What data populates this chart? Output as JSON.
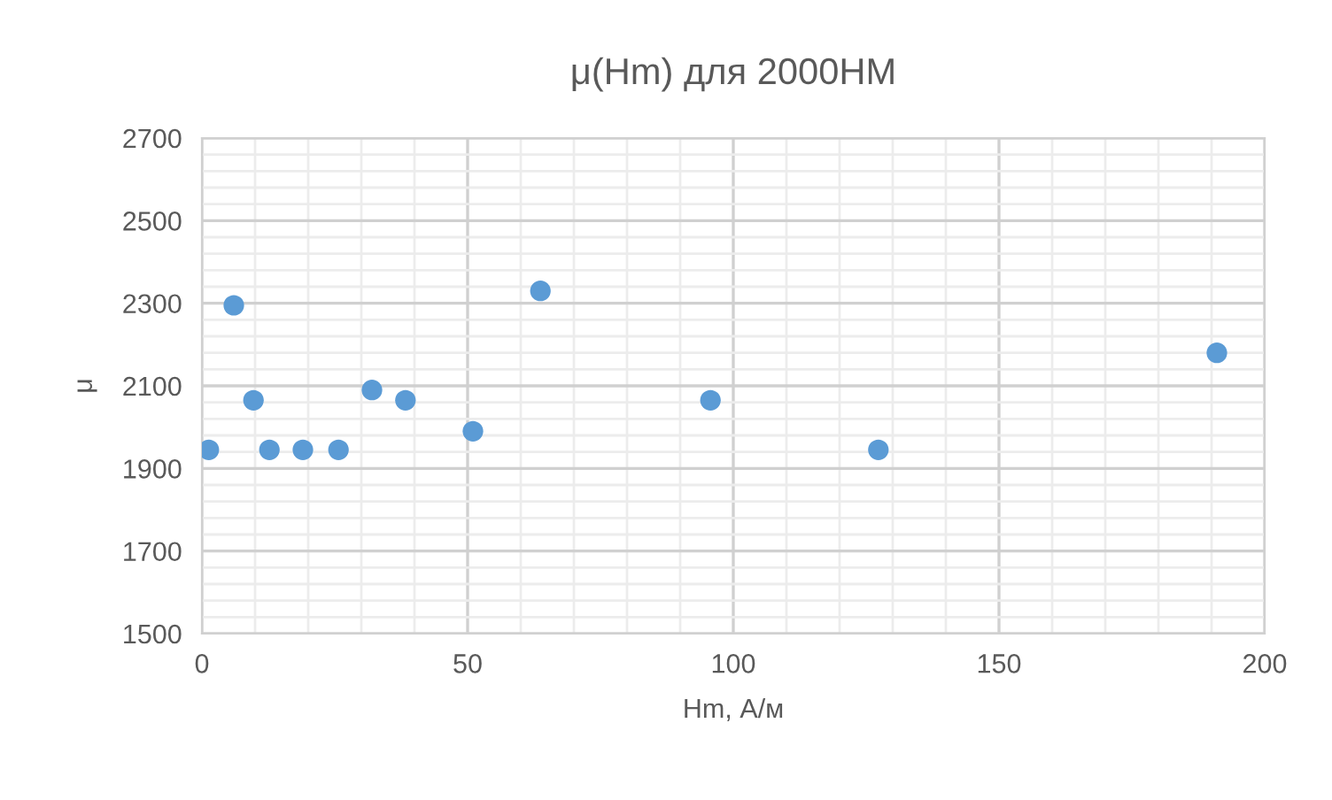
{
  "chart_data": {
    "type": "scatter",
    "title": "μ(Hm) для 2000НМ",
    "xlabel": "Hm, А/м",
    "ylabel": "μ",
    "x": [
      1.3,
      6,
      9.7,
      12.7,
      19,
      25.7,
      32,
      38.3,
      51,
      63.7,
      95.7,
      127.3,
      191
    ],
    "series": [
      {
        "color": "#5b9bd5",
        "values": [
          1945,
          2295,
          2065,
          1945,
          1945,
          1945,
          2090,
          2065,
          1990,
          2330,
          2065,
          1945,
          2180
        ]
      }
    ],
    "xlim": [
      0,
      200
    ],
    "xticks": [
      0,
      50,
      100,
      150,
      200
    ],
    "ylim": [
      1500,
      2700
    ],
    "yticks": [
      1500,
      1700,
      1900,
      2100,
      2300,
      2500,
      2700
    ],
    "grid": true,
    "marker": "circle"
  }
}
